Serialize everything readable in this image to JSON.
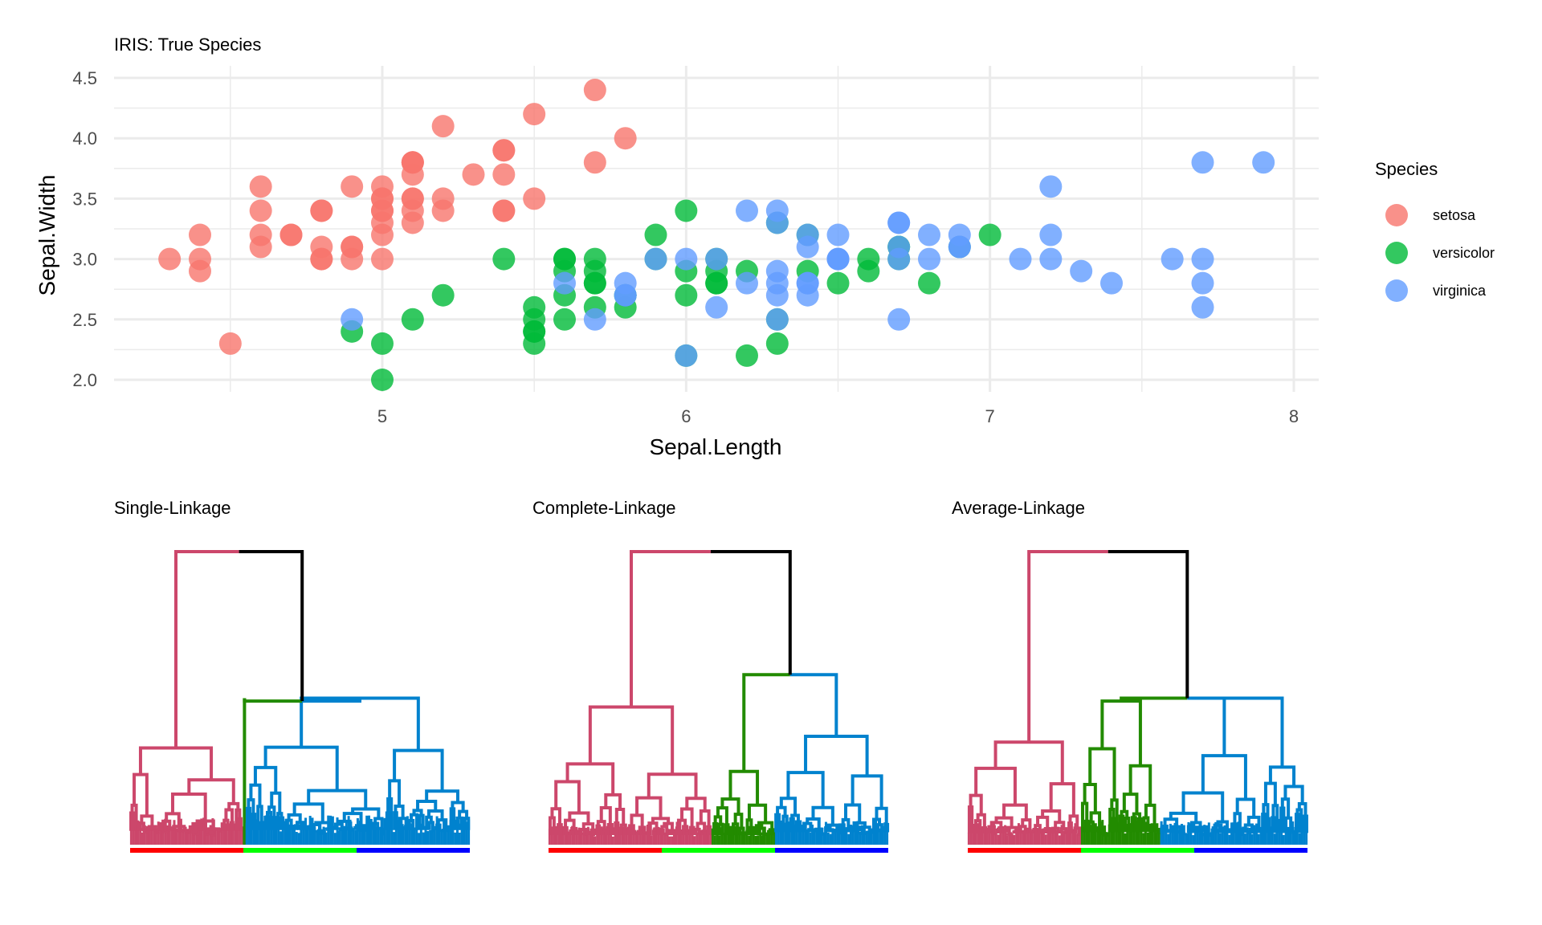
{
  "colors": {
    "setosa": "#F8766D",
    "versicolor": "#00BA38",
    "virginica": "#619CFF",
    "dend_red": "#CC476B",
    "dend_green": "#228B00",
    "dend_blue": "#0082CE",
    "leaf_red": "#FF0000",
    "leaf_green": "#00FF00",
    "leaf_blue": "#0000FF",
    "root": "#000000",
    "grid": "#EBEBEB"
  },
  "chart_data": [
    {
      "type": "scatter",
      "title": "IRIS: True Species",
      "xlabel": "Sepal.Length",
      "ylabel": "Sepal.Width",
      "xlim": [
        4.3,
        7.9
      ],
      "ylim": [
        2.0,
        4.4
      ],
      "x_ticks": [
        "5",
        "6",
        "7",
        "8"
      ],
      "y_ticks": [
        "2.0",
        "2.5",
        "3.0",
        "3.5",
        "4.0",
        "4.5"
      ],
      "grid": true,
      "legend": {
        "title": "Species",
        "placement": "right",
        "entries": [
          "setosa",
          "versicolor",
          "virginica"
        ]
      },
      "series": [
        {
          "name": "setosa",
          "points": [
            [
              5.1,
              3.5
            ],
            [
              4.9,
              3.0
            ],
            [
              4.7,
              3.2
            ],
            [
              4.6,
              3.1
            ],
            [
              5.0,
              3.6
            ],
            [
              5.4,
              3.9
            ],
            [
              4.6,
              3.4
            ],
            [
              5.0,
              3.4
            ],
            [
              4.4,
              2.9
            ],
            [
              4.9,
              3.1
            ],
            [
              5.4,
              3.7
            ],
            [
              4.8,
              3.4
            ],
            [
              4.8,
              3.0
            ],
            [
              4.3,
              3.0
            ],
            [
              5.8,
              4.0
            ],
            [
              5.7,
              4.4
            ],
            [
              5.4,
              3.9
            ],
            [
              5.1,
              3.5
            ],
            [
              5.7,
              3.8
            ],
            [
              5.1,
              3.8
            ],
            [
              5.4,
              3.4
            ],
            [
              5.1,
              3.7
            ],
            [
              4.6,
              3.6
            ],
            [
              5.1,
              3.3
            ],
            [
              4.8,
              3.4
            ],
            [
              5.0,
              3.0
            ],
            [
              5.0,
              3.4
            ],
            [
              5.2,
              3.5
            ],
            [
              5.2,
              3.4
            ],
            [
              4.7,
              3.2
            ],
            [
              4.8,
              3.1
            ],
            [
              5.4,
              3.4
            ],
            [
              5.2,
              4.1
            ],
            [
              5.5,
              4.2
            ],
            [
              4.9,
              3.1
            ],
            [
              5.0,
              3.2
            ],
            [
              5.5,
              3.5
            ],
            [
              4.9,
              3.6
            ],
            [
              4.4,
              3.0
            ],
            [
              5.1,
              3.4
            ],
            [
              5.0,
              3.5
            ],
            [
              4.5,
              2.3
            ],
            [
              4.4,
              3.2
            ],
            [
              5.0,
              3.5
            ],
            [
              5.1,
              3.8
            ],
            [
              4.8,
              3.0
            ],
            [
              5.1,
              3.8
            ],
            [
              4.6,
              3.2
            ],
            [
              5.3,
              3.7
            ],
            [
              5.0,
              3.3
            ]
          ]
        },
        {
          "name": "versicolor",
          "points": [
            [
              7.0,
              3.2
            ],
            [
              6.4,
              3.2
            ],
            [
              6.9,
              3.1
            ],
            [
              5.5,
              2.3
            ],
            [
              6.5,
              2.8
            ],
            [
              5.7,
              2.8
            ],
            [
              6.3,
              3.3
            ],
            [
              4.9,
              2.4
            ],
            [
              6.6,
              2.9
            ],
            [
              5.2,
              2.7
            ],
            [
              5.0,
              2.0
            ],
            [
              5.9,
              3.0
            ],
            [
              6.0,
              2.2
            ],
            [
              6.1,
              2.9
            ],
            [
              5.6,
              2.9
            ],
            [
              6.7,
              3.1
            ],
            [
              5.6,
              3.0
            ],
            [
              5.8,
              2.7
            ],
            [
              6.2,
              2.2
            ],
            [
              5.6,
              2.5
            ],
            [
              5.9,
              3.2
            ],
            [
              6.1,
              2.8
            ],
            [
              6.3,
              2.5
            ],
            [
              6.1,
              2.8
            ],
            [
              6.4,
              2.9
            ],
            [
              6.6,
              3.0
            ],
            [
              6.8,
              2.8
            ],
            [
              6.7,
              3.0
            ],
            [
              6.0,
              2.9
            ],
            [
              5.7,
              2.6
            ],
            [
              5.5,
              2.4
            ],
            [
              5.5,
              2.4
            ],
            [
              5.8,
              2.7
            ],
            [
              6.0,
              2.7
            ],
            [
              5.4,
              3.0
            ],
            [
              6.0,
              3.4
            ],
            [
              6.7,
              3.1
            ],
            [
              6.3,
              2.3
            ],
            [
              5.6,
              3.0
            ],
            [
              5.5,
              2.5
            ],
            [
              5.5,
              2.6
            ],
            [
              6.1,
              3.0
            ],
            [
              5.8,
              2.6
            ],
            [
              5.0,
              2.3
            ],
            [
              5.6,
              2.7
            ],
            [
              5.7,
              3.0
            ],
            [
              5.7,
              2.9
            ],
            [
              6.2,
              2.9
            ],
            [
              5.1,
              2.5
            ],
            [
              5.7,
              2.8
            ]
          ]
        },
        {
          "name": "virginica",
          "points": [
            [
              6.3,
              3.3
            ],
            [
              5.8,
              2.7
            ],
            [
              7.1,
              3.0
            ],
            [
              6.3,
              2.9
            ],
            [
              6.5,
              3.0
            ],
            [
              7.6,
              3.0
            ],
            [
              4.9,
              2.5
            ],
            [
              7.3,
              2.9
            ],
            [
              6.7,
              2.5
            ],
            [
              7.2,
              3.6
            ],
            [
              6.5,
              3.2
            ],
            [
              6.4,
              2.7
            ],
            [
              6.8,
              3.0
            ],
            [
              5.7,
              2.5
            ],
            [
              5.8,
              2.8
            ],
            [
              6.4,
              3.2
            ],
            [
              6.5,
              3.0
            ],
            [
              7.7,
              3.8
            ],
            [
              7.7,
              2.6
            ],
            [
              6.0,
              2.2
            ],
            [
              6.9,
              3.2
            ],
            [
              5.6,
              2.8
            ],
            [
              7.7,
              2.8
            ],
            [
              6.3,
              2.7
            ],
            [
              6.7,
              3.3
            ],
            [
              7.2,
              3.2
            ],
            [
              6.2,
              2.8
            ],
            [
              6.1,
              3.0
            ],
            [
              6.4,
              2.8
            ],
            [
              7.2,
              3.0
            ],
            [
              7.4,
              2.8
            ],
            [
              7.9,
              3.8
            ],
            [
              6.4,
              2.8
            ],
            [
              6.3,
              2.8
            ],
            [
              6.1,
              2.6
            ],
            [
              7.7,
              3.0
            ],
            [
              6.3,
              3.4
            ],
            [
              6.4,
              3.1
            ],
            [
              6.0,
              3.0
            ],
            [
              6.9,
              3.1
            ],
            [
              6.7,
              3.1
            ],
            [
              6.9,
              3.1
            ],
            [
              5.8,
              2.7
            ],
            [
              6.8,
              3.2
            ],
            [
              6.7,
              3.3
            ],
            [
              6.7,
              3.0
            ],
            [
              6.3,
              2.5
            ],
            [
              6.5,
              3.0
            ],
            [
              6.2,
              3.4
            ],
            [
              5.9,
              3.0
            ]
          ]
        }
      ]
    },
    {
      "type": "dendrogram",
      "title": "Single-Linkage",
      "leaves": 150,
      "leaf_order": [
        "setosa",
        "versicolor",
        "virginica"
      ],
      "leaf_counts": [
        50,
        50,
        50
      ],
      "clusters": [
        {
          "color": "dend_red",
          "leaves": 50,
          "height": 0.33
        },
        {
          "color": "dend_green",
          "leaves": 1,
          "height": 0.5
        },
        {
          "color": "dend_blue",
          "leaves": 99,
          "height": 0.5
        }
      ],
      "root_height": 1.0,
      "split_height": 0.49
    },
    {
      "type": "dendrogram",
      "title": "Complete-Linkage",
      "leaves": 150,
      "leaf_order": [
        "setosa",
        "versicolor",
        "virginica"
      ],
      "leaf_counts": [
        50,
        50,
        50
      ],
      "clusters": [
        {
          "color": "dend_red",
          "leaves": 72,
          "height": 0.47
        },
        {
          "color": "dend_green",
          "leaves": 28,
          "height": 0.25
        },
        {
          "color": "dend_blue",
          "leaves": 50,
          "height": 0.37
        }
      ],
      "root_height": 1.0,
      "split_height": 0.58
    },
    {
      "type": "dendrogram",
      "title": "Average-Linkage",
      "leaves": 150,
      "leaf_order": [
        "setosa",
        "versicolor",
        "virginica"
      ],
      "leaf_counts": [
        50,
        50,
        50
      ],
      "clusters": [
        {
          "color": "dend_red",
          "leaves": 50,
          "height": 0.35
        },
        {
          "color": "dend_green",
          "leaves": 35,
          "height": 0.49
        },
        {
          "color": "dend_blue",
          "leaves": 65,
          "height": 0.5
        }
      ],
      "root_height": 1.0,
      "split_height": 0.5
    }
  ]
}
